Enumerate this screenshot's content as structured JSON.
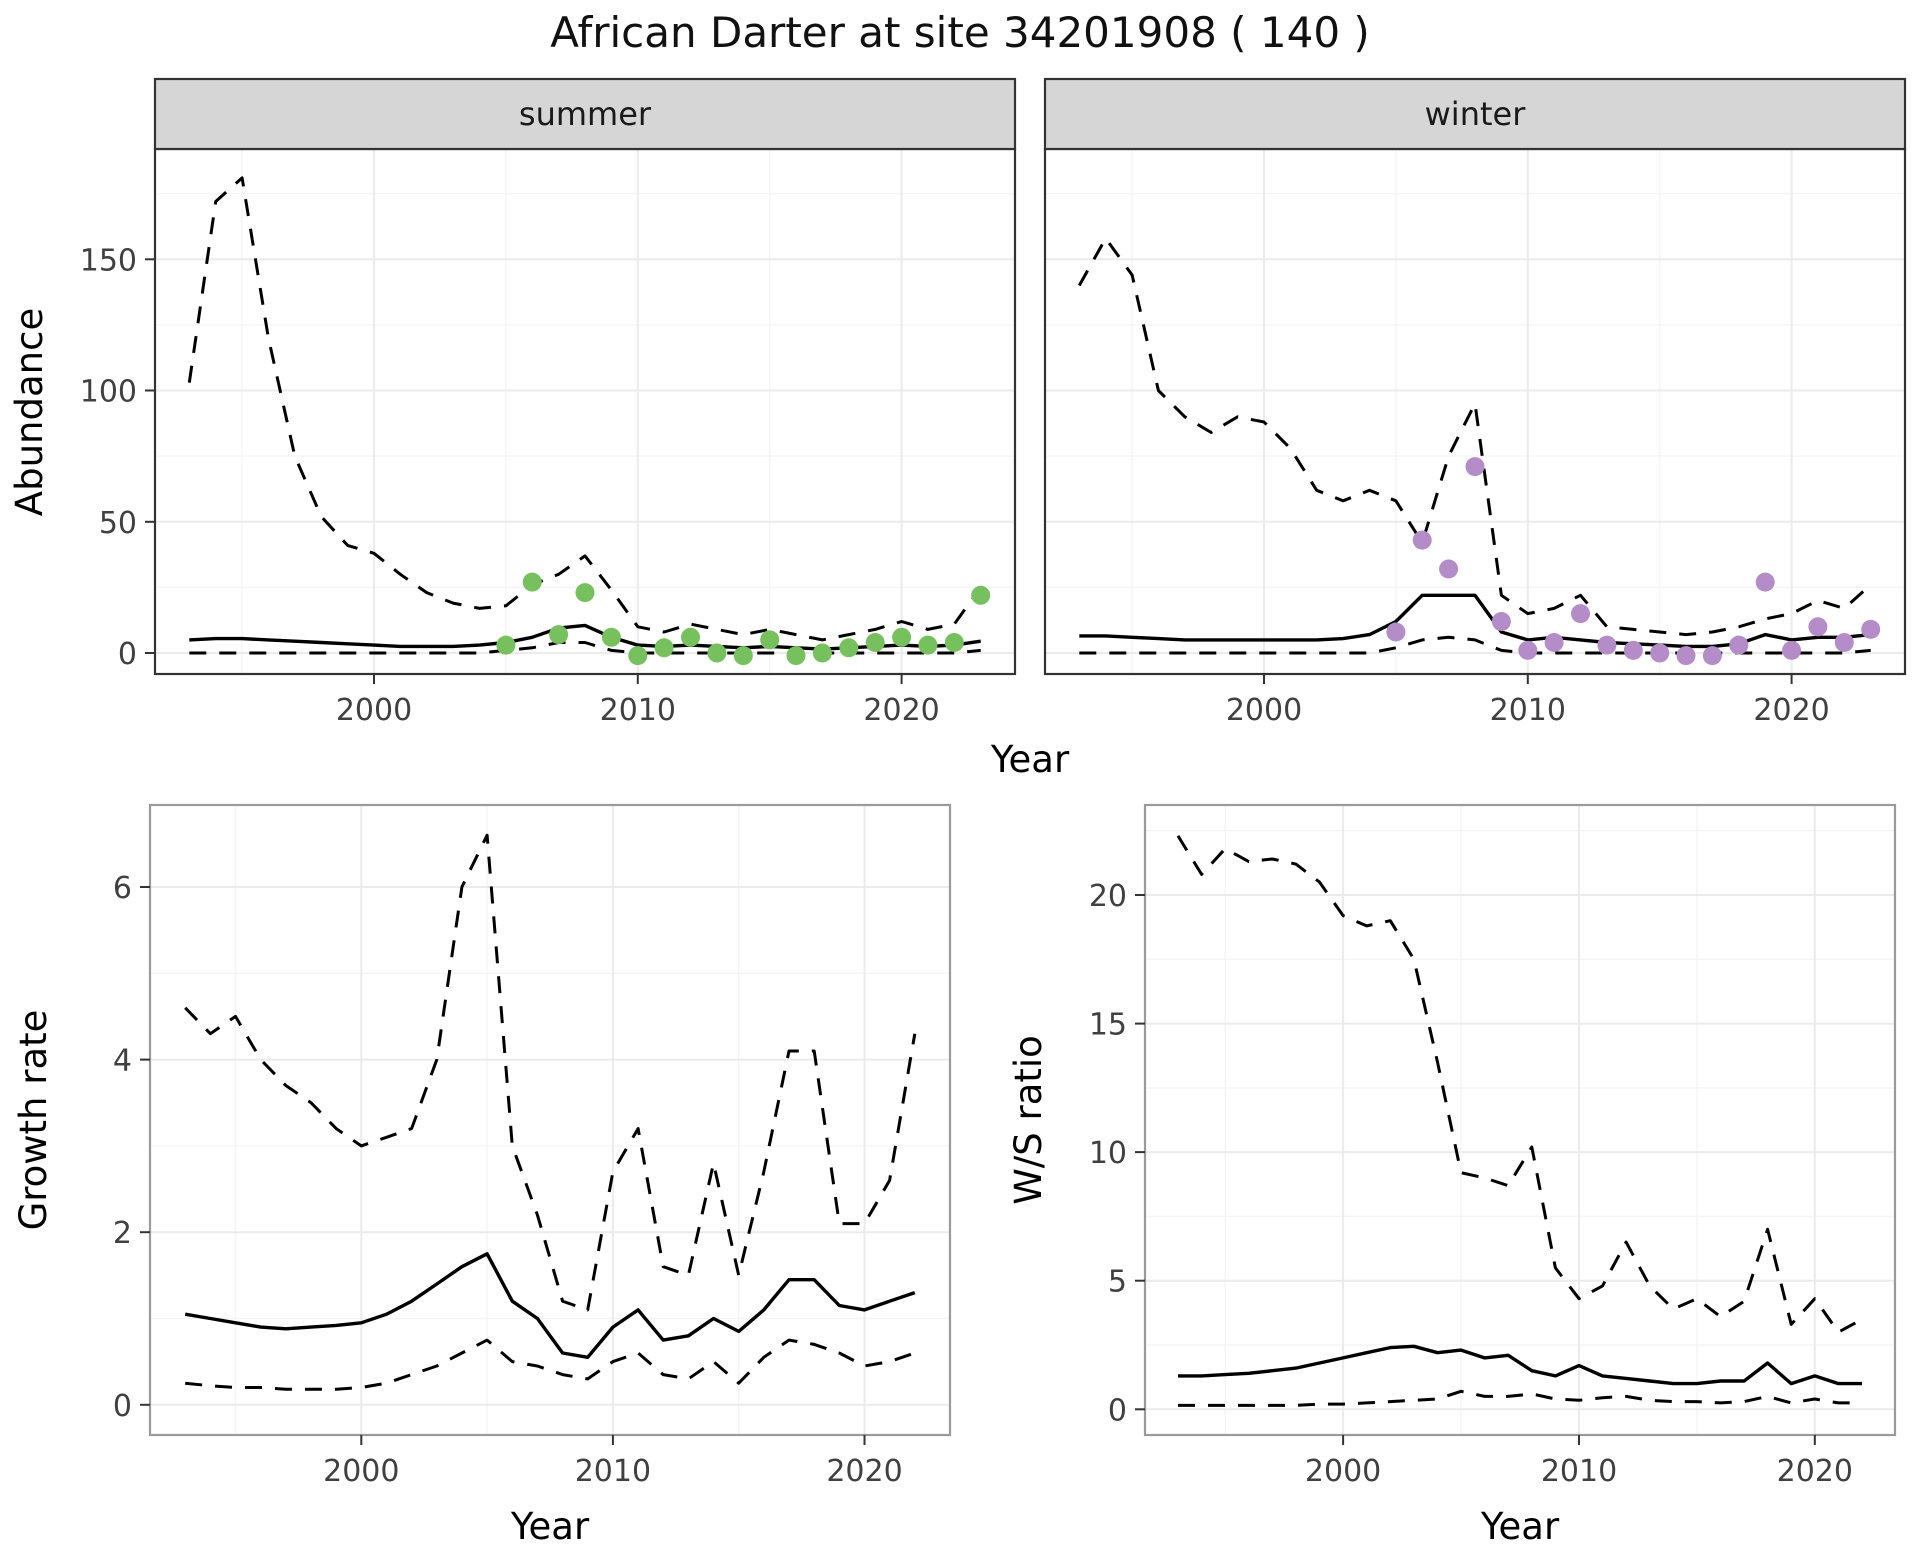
{
  "title": "African Darter at site 34201908 ( 140 )",
  "chart_data": [
    {
      "id": "abundance",
      "type": "line",
      "title": "",
      "xlabel": "Year",
      "ylabel": "Abundance",
      "xlim": [
        1991.7,
        2024.3
      ],
      "ylim": [
        -8,
        192
      ],
      "xticks": [
        2000,
        2010,
        2020
      ],
      "yticks": [
        0,
        50,
        100,
        150
      ],
      "xminor": [
        1995,
        2005,
        2015
      ],
      "yminor": [
        25,
        75,
        125,
        175
      ],
      "grid": true,
      "legend": "none",
      "facets": [
        {
          "label": "summer",
          "x": [
            1993,
            1994,
            1995,
            1996,
            1997,
            1998,
            1999,
            2000,
            2001,
            2002,
            2003,
            2004,
            2005,
            2006,
            2007,
            2008,
            2009,
            2010,
            2011,
            2012,
            2013,
            2014,
            2015,
            2016,
            2017,
            2018,
            2019,
            2020,
            2021,
            2022,
            2023
          ],
          "series": [
            {
              "name": "upper-ci",
              "style": "dashed",
              "values": [
                103,
                172,
                181,
                120,
                75,
                52,
                41,
                38,
                30,
                23,
                19,
                17,
                18,
                26,
                30,
                37,
                24,
                10,
                8,
                11,
                9,
                7,
                9,
                7,
                5,
                7,
                9,
                12,
                9,
                11,
                25
              ]
            },
            {
              "name": "median",
              "style": "solid",
              "values": [
                5,
                5.5,
                5.5,
                5,
                4.5,
                4,
                3.5,
                3,
                2.5,
                2.5,
                2.5,
                3,
                4,
                6,
                9.5,
                10.5,
                6,
                3,
                2.5,
                3,
                2.5,
                2,
                2.5,
                2,
                1.5,
                2,
                2.5,
                3,
                2.5,
                3,
                4.5
              ]
            },
            {
              "name": "lower-ci",
              "style": "dashed",
              "values": [
                0,
                0,
                0,
                0,
                0,
                0,
                0,
                0,
                0,
                0,
                0,
                0,
                1,
                2,
                4,
                4,
                1,
                0,
                0,
                0,
                0,
                0,
                0,
                0,
                0,
                0,
                0,
                0,
                0,
                0,
                1
              ]
            }
          ],
          "points": {
            "name": "observed-counts",
            "color": "#77c05e",
            "x": [
              2005,
              2006,
              2007,
              2008,
              2009,
              2010,
              2011,
              2012,
              2013,
              2014,
              2015,
              2016,
              2017,
              2018,
              2019,
              2020,
              2021,
              2022,
              2023
            ],
            "y": [
              3,
              27,
              7,
              23,
              6,
              -1,
              2,
              6,
              0,
              -1,
              5,
              -1,
              0,
              2,
              4,
              6,
              3,
              4,
              22
            ]
          }
        },
        {
          "label": "winter",
          "x": [
            1993,
            1994,
            1995,
            1996,
            1997,
            1998,
            1999,
            2000,
            2001,
            2002,
            2003,
            2004,
            2005,
            2006,
            2007,
            2008,
            2009,
            2010,
            2011,
            2012,
            2013,
            2014,
            2015,
            2016,
            2017,
            2018,
            2019,
            2020,
            2021,
            2022,
            2023
          ],
          "series": [
            {
              "name": "upper-ci",
              "style": "dashed",
              "values": [
                140,
                158,
                144,
                100,
                90,
                84,
                90,
                88,
                78,
                62,
                58,
                62,
                58,
                42,
                75,
                95,
                22,
                15,
                17,
                22,
                10,
                9,
                8,
                7,
                8,
                10,
                13,
                15,
                20,
                17,
                26
              ]
            },
            {
              "name": "median",
              "style": "solid",
              "values": [
                6.5,
                6.5,
                6,
                5.5,
                5,
                5,
                5,
                5,
                5,
                5,
                5.5,
                7,
                12,
                22,
                22,
                22,
                8,
                5,
                6,
                5,
                4,
                3.5,
                3,
                2.5,
                2.5,
                3.5,
                7,
                5,
                6,
                6,
                7
              ]
            },
            {
              "name": "lower-ci",
              "style": "dashed",
              "values": [
                0,
                0,
                0,
                0,
                0,
                0,
                0,
                0,
                0,
                0,
                0,
                0,
                2,
                5,
                6,
                5,
                1,
                0,
                0,
                0,
                0,
                0,
                0,
                0,
                0,
                0,
                0,
                0,
                0,
                0,
                1
              ]
            }
          ],
          "points": {
            "name": "observed-counts",
            "color": "#b48cc8",
            "x": [
              2005,
              2006,
              2007,
              2008,
              2009,
              2010,
              2011,
              2012,
              2013,
              2014,
              2015,
              2016,
              2017,
              2018,
              2019,
              2020,
              2021,
              2022,
              2023
            ],
            "y": [
              8,
              43,
              32,
              71,
              12,
              1,
              4,
              15,
              3,
              1,
              0,
              -1,
              -1,
              3,
              27,
              1,
              10,
              4,
              9
            ]
          }
        }
      ]
    },
    {
      "id": "growth-rate",
      "type": "line",
      "title": "",
      "xlabel": "Year",
      "ylabel": "Growth rate",
      "xlim": [
        1991.6,
        2023.4
      ],
      "ylim": [
        -0.35,
        6.95
      ],
      "xticks": [
        2000,
        2010,
        2020
      ],
      "yticks": [
        0,
        2,
        4,
        6
      ],
      "xminor": [
        1995,
        2005,
        2015
      ],
      "yminor": [
        1,
        3,
        5
      ],
      "grid": true,
      "legend": "none",
      "x": [
        1993,
        1994,
        1995,
        1996,
        1997,
        1998,
        1999,
        2000,
        2001,
        2002,
        2003,
        2004,
        2005,
        2006,
        2007,
        2008,
        2009,
        2010,
        2011,
        2012,
        2013,
        2014,
        2015,
        2016,
        2017,
        2018,
        2019,
        2020,
        2021,
        2022
      ],
      "series": [
        {
          "name": "upper-ci",
          "style": "dashed",
          "values": [
            4.6,
            4.3,
            4.5,
            4.0,
            3.7,
            3.5,
            3.2,
            3.0,
            3.1,
            3.2,
            4.0,
            6.0,
            6.6,
            3.0,
            2.2,
            1.2,
            1.1,
            2.7,
            3.2,
            1.6,
            1.5,
            2.8,
            1.5,
            2.7,
            4.1,
            4.1,
            2.1,
            2.1,
            2.6,
            4.3
          ]
        },
        {
          "name": "median",
          "style": "solid",
          "values": [
            1.05,
            1.0,
            0.95,
            0.9,
            0.88,
            0.9,
            0.92,
            0.95,
            1.05,
            1.2,
            1.4,
            1.6,
            1.75,
            1.2,
            1.0,
            0.6,
            0.55,
            0.9,
            1.1,
            0.75,
            0.8,
            1.0,
            0.85,
            1.1,
            1.45,
            1.45,
            1.15,
            1.1,
            1.2,
            1.3
          ]
        },
        {
          "name": "lower-ci",
          "style": "dashed",
          "values": [
            0.25,
            0.22,
            0.2,
            0.2,
            0.18,
            0.18,
            0.18,
            0.2,
            0.25,
            0.35,
            0.45,
            0.6,
            0.75,
            0.5,
            0.45,
            0.35,
            0.3,
            0.5,
            0.6,
            0.35,
            0.3,
            0.5,
            0.25,
            0.55,
            0.75,
            0.7,
            0.6,
            0.45,
            0.5,
            0.6
          ]
        }
      ]
    },
    {
      "id": "ws-ratio",
      "type": "line",
      "title": "",
      "xlabel": "Year",
      "ylabel": "W/S ratio",
      "xlim": [
        1991.6,
        2023.4
      ],
      "ylim": [
        -1,
        23.5
      ],
      "xticks": [
        2000,
        2010,
        2020
      ],
      "yticks": [
        0,
        5,
        10,
        15,
        20
      ],
      "xminor": [
        1995,
        2005,
        2015
      ],
      "yminor": [
        2.5,
        7.5,
        12.5,
        17.5,
        22.5
      ],
      "grid": true,
      "legend": "none",
      "x": [
        1993,
        1994,
        1995,
        1996,
        1997,
        1998,
        1999,
        2000,
        2001,
        2002,
        2003,
        2004,
        2005,
        2006,
        2007,
        2008,
        2009,
        2010,
        2011,
        2012,
        2013,
        2014,
        2015,
        2016,
        2017,
        2018,
        2019,
        2020,
        2021,
        2022
      ],
      "series": [
        {
          "name": "upper-ci",
          "style": "dashed",
          "values": [
            22.3,
            20.8,
            21.8,
            21.3,
            21.4,
            21.2,
            20.5,
            19.2,
            18.8,
            19.0,
            17.5,
            13.5,
            9.2,
            9.0,
            8.7,
            10.2,
            5.5,
            4.3,
            4.8,
            6.5,
            4.8,
            3.9,
            4.3,
            3.6,
            4.2,
            7.0,
            3.3,
            4.3,
            3.0,
            3.5
          ]
        },
        {
          "name": "median",
          "style": "solid",
          "values": [
            1.3,
            1.3,
            1.35,
            1.4,
            1.5,
            1.6,
            1.8,
            2.0,
            2.2,
            2.4,
            2.45,
            2.2,
            2.3,
            2.0,
            2.1,
            1.5,
            1.3,
            1.7,
            1.3,
            1.2,
            1.1,
            1.0,
            1.0,
            1.1,
            1.1,
            1.8,
            1.0,
            1.3,
            1.0,
            1.0
          ]
        },
        {
          "name": "lower-ci",
          "style": "dashed",
          "values": [
            0.15,
            0.15,
            0.15,
            0.15,
            0.15,
            0.15,
            0.2,
            0.2,
            0.25,
            0.3,
            0.35,
            0.4,
            0.7,
            0.5,
            0.5,
            0.6,
            0.4,
            0.35,
            0.45,
            0.5,
            0.35,
            0.3,
            0.3,
            0.25,
            0.3,
            0.5,
            0.25,
            0.4,
            0.25,
            0.25
          ]
        }
      ]
    }
  ],
  "style": {
    "grid_major_color": "#ebebeb",
    "grid_minor_color": "#f5f5f5",
    "panel_border_top": "#333333",
    "panel_border_bottom": "#9a9a9a",
    "strip_fill": "#d6d6d6",
    "line_color": "#000000",
    "summer_point_color": "#77c05e",
    "winter_point_color": "#b48cc8"
  }
}
